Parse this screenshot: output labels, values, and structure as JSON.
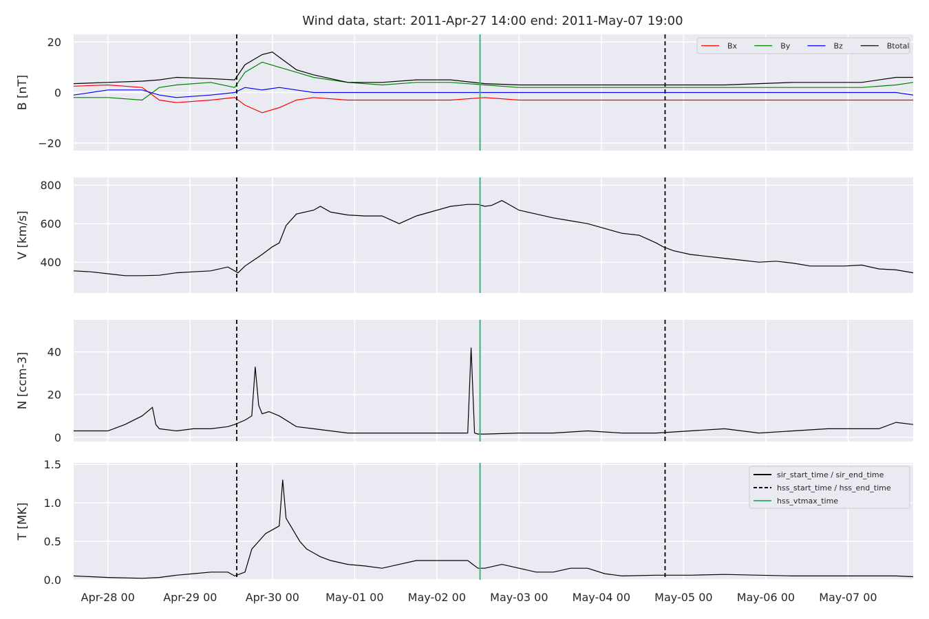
{
  "chart_data": {
    "type": "line",
    "title": "Wind data, start: 2011-Apr-27 14:00  end: 2011-May-07 19:00",
    "x_range_hours_from_start": [
      0,
      245
    ],
    "x_ticks": [
      {
        "label": "Apr-28 00",
        "hour": 10
      },
      {
        "label": "Apr-29 00",
        "hour": 34
      },
      {
        "label": "Apr-30 00",
        "hour": 58
      },
      {
        "label": "May-01 00",
        "hour": 82
      },
      {
        "label": "May-02 00",
        "hour": 106
      },
      {
        "label": "May-03 00",
        "hour": 130
      },
      {
        "label": "May-04 00",
        "hour": 154
      },
      {
        "label": "May-05 00",
        "hour": 178
      },
      {
        "label": "May-06 00",
        "hour": 202
      },
      {
        "label": "May-07 00",
        "hour": 226
      }
    ],
    "vertical_lines": [
      {
        "name": "hss_start_time / hss_end_time",
        "style": "dashed",
        "color": "#000000",
        "hours": [
          47.6,
          172.6
        ]
      },
      {
        "name": "hss_vtmax_time",
        "style": "solid",
        "color": "#3cb371",
        "hours": [
          118.6
        ]
      }
    ],
    "panels": [
      {
        "id": "B",
        "ylabel": "B [nT]",
        "ylim": [
          -23,
          23
        ],
        "yticks": [
          {
            "v": 20,
            "label": "20"
          },
          {
            "v": 0,
            "label": "0"
          },
          {
            "v": -20,
            "label": "−20"
          }
        ],
        "legend": "top-right",
        "series": [
          {
            "name": "Bx",
            "color": "#ff0000",
            "x": [
              0,
              10,
              20,
              25,
              30,
              40,
              47,
              50,
              55,
              60,
              65,
              70,
              80,
              90,
              100,
              110,
              120,
              130,
              140,
              150,
              160,
              170,
              180,
              190,
              200,
              210,
              220,
              230,
              240,
              245
            ],
            "y": [
              2.5,
              3,
              2,
              -3,
              -4,
              -3,
              -2,
              -5,
              -8,
              -6,
              -3,
              -2,
              -3,
              -3,
              -3,
              -3,
              -2,
              -3,
              -3,
              -3,
              -3,
              -3,
              -3,
              -3,
              -3,
              -3,
              -3,
              -3,
              -3,
              -3
            ]
          },
          {
            "name": "By",
            "color": "#008000",
            "x": [
              0,
              10,
              20,
              25,
              30,
              40,
              47,
              50,
              55,
              60,
              65,
              70,
              80,
              90,
              100,
              110,
              120,
              130,
              140,
              150,
              160,
              170,
              180,
              190,
              200,
              210,
              220,
              230,
              240,
              245
            ],
            "y": [
              -2,
              -2,
              -3,
              2,
              3,
              4,
              2,
              8,
              12,
              10,
              8,
              6,
              4,
              3,
              4,
              4,
              3,
              2,
              2,
              2,
              2,
              2,
              2,
              2,
              2,
              2,
              2,
              2,
              3,
              4
            ]
          },
          {
            "name": "Bz",
            "color": "#0000ff",
            "x": [
              0,
              10,
              20,
              25,
              30,
              40,
              47,
              50,
              55,
              60,
              65,
              70,
              80,
              90,
              100,
              110,
              120,
              130,
              140,
              150,
              160,
              170,
              180,
              190,
              200,
              210,
              220,
              230,
              240,
              245
            ],
            "y": [
              -1,
              1,
              1,
              -1,
              -2,
              -1,
              0,
              2,
              1,
              2,
              1,
              0,
              0,
              0,
              0,
              0,
              0,
              0,
              0,
              0,
              0,
              0,
              0,
              0,
              0,
              0,
              0,
              0,
              0,
              -1
            ]
          },
          {
            "name": "Btotal",
            "color": "#000000",
            "x": [
              0,
              10,
              20,
              25,
              30,
              40,
              47,
              50,
              55,
              58,
              60,
              65,
              70,
              80,
              90,
              100,
              110,
              120,
              130,
              140,
              150,
              160,
              170,
              180,
              190,
              200,
              210,
              220,
              230,
              240,
              245
            ],
            "y": [
              3.5,
              4,
              4.5,
              5,
              6,
              5.5,
              5,
              11,
              15,
              16,
              14,
              9,
              7,
              4,
              4,
              5,
              5,
              3.5,
              3,
              3,
              3,
              3,
              3,
              3,
              3,
              3.5,
              4,
              4,
              4,
              6,
              6
            ]
          }
        ]
      },
      {
        "id": "V",
        "ylabel": "V [km/s]",
        "ylim": [
          240,
          840
        ],
        "yticks": [
          {
            "v": 800,
            "label": "800"
          },
          {
            "v": 600,
            "label": "600"
          },
          {
            "v": 400,
            "label": "400"
          }
        ],
        "series": [
          {
            "name": "V",
            "color": "#000000",
            "x": [
              0,
              5,
              10,
              15,
              20,
              25,
              30,
              35,
              40,
              45,
              47,
              48,
              50,
              55,
              58,
              60,
              62,
              65,
              70,
              72,
              75,
              80,
              85,
              90,
              95,
              100,
              105,
              110,
              115,
              118,
              120,
              122,
              125,
              130,
              135,
              140,
              145,
              150,
              155,
              160,
              165,
              170,
              172,
              175,
              180,
              185,
              190,
              195,
              200,
              205,
              210,
              215,
              220,
              225,
              230,
              235,
              240,
              245
            ],
            "y": [
              355,
              350,
              340,
              330,
              330,
              332,
              345,
              350,
              355,
              375,
              355,
              345,
              380,
              440,
              480,
              500,
              590,
              650,
              670,
              690,
              660,
              645,
              640,
              640,
              600,
              640,
              665,
              690,
              700,
              700,
              690,
              695,
              720,
              670,
              650,
              630,
              615,
              600,
              575,
              550,
              540,
              500,
              480,
              460,
              440,
              430,
              420,
              410,
              400,
              405,
              395,
              380,
              380,
              380,
              385,
              365,
              360,
              345
            ]
          }
        ]
      },
      {
        "id": "N",
        "ylabel": "N [ccm-3]",
        "ylim": [
          -2,
          55
        ],
        "yticks": [
          {
            "v": 40,
            "label": "40"
          },
          {
            "v": 20,
            "label": "20"
          },
          {
            "v": 0,
            "label": "0"
          }
        ],
        "series": [
          {
            "name": "N",
            "color": "#000000",
            "x": [
              0,
              5,
              10,
              15,
              20,
              23,
              24,
              25,
              30,
              35,
              40,
              45,
              47,
              50,
              52,
              53,
              54,
              55,
              57,
              60,
              65,
              70,
              75,
              80,
              90,
              100,
              110,
              115,
              116,
              117,
              118,
              120,
              130,
              140,
              150,
              160,
              170,
              180,
              190,
              200,
              210,
              220,
              230,
              235,
              240,
              245
            ],
            "y": [
              3,
              3,
              3,
              6,
              10,
              14,
              6,
              4,
              3,
              4,
              4,
              5,
              6,
              8,
              10,
              33,
              15,
              11,
              12,
              10,
              5,
              4,
              3,
              2,
              2,
              2,
              2,
              2,
              42,
              2,
              1.5,
              1.5,
              2,
              2,
              3,
              2,
              2,
              3,
              4,
              2,
              3,
              4,
              4,
              4,
              7,
              6
            ]
          }
        ]
      },
      {
        "id": "T",
        "ylabel": "T [MK]",
        "ylim": [
          0,
          1.52
        ],
        "yticks": [
          {
            "v": 1.5,
            "label": "1.5"
          },
          {
            "v": 1.0,
            "label": "1.0"
          },
          {
            "v": 0.5,
            "label": "0.5"
          },
          {
            "v": 0.0,
            "label": "0.0"
          }
        ],
        "legend": "top-right",
        "series": [
          {
            "name": "T",
            "color": "#000000",
            "x": [
              0,
              10,
              20,
              25,
              30,
              35,
              40,
              45,
              47,
              50,
              52,
              54,
              56,
              58,
              60,
              61,
              62,
              64,
              66,
              68,
              70,
              72,
              75,
              80,
              85,
              90,
              95,
              100,
              105,
              110,
              115,
              118,
              120,
              125,
              130,
              135,
              140,
              145,
              150,
              155,
              160,
              170,
              180,
              190,
              200,
              210,
              220,
              230,
              240,
              245
            ],
            "y": [
              0.05,
              0.03,
              0.02,
              0.03,
              0.06,
              0.08,
              0.1,
              0.1,
              0.05,
              0.1,
              0.4,
              0.5,
              0.6,
              0.65,
              0.7,
              1.3,
              0.8,
              0.65,
              0.5,
              0.4,
              0.35,
              0.3,
              0.25,
              0.2,
              0.18,
              0.15,
              0.2,
              0.25,
              0.25,
              0.25,
              0.25,
              0.15,
              0.15,
              0.2,
              0.15,
              0.1,
              0.1,
              0.15,
              0.15,
              0.08,
              0.05,
              0.06,
              0.06,
              0.07,
              0.06,
              0.05,
              0.05,
              0.05,
              0.05,
              0.04
            ]
          }
        ]
      }
    ],
    "legends": [
      {
        "panel": "B",
        "entries": [
          {
            "label": "Bx",
            "color": "#ff0000",
            "style": "solid"
          },
          {
            "label": "By",
            "color": "#008000",
            "style": "solid"
          },
          {
            "label": "Bz",
            "color": "#0000ff",
            "style": "solid"
          },
          {
            "label": "Btotal",
            "color": "#000000",
            "style": "solid"
          }
        ]
      },
      {
        "panel": "T",
        "entries": [
          {
            "label": "sir_start_time / sir_end_time",
            "color": "#000000",
            "style": "solid"
          },
          {
            "label": "hss_start_time / hss_end_time",
            "color": "#000000",
            "style": "dashed"
          },
          {
            "label": "hss_vtmax_time",
            "color": "#3cb371",
            "style": "solid"
          }
        ]
      }
    ],
    "grid": true,
    "background": "#eaeaf2"
  }
}
